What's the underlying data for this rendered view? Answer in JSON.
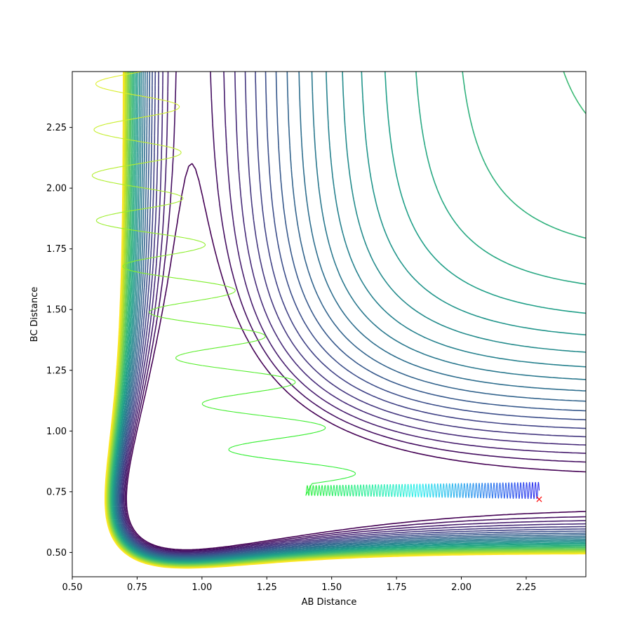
{
  "chart_data": {
    "type": "contour",
    "title": "",
    "xlabel": "AB Distance",
    "ylabel": "BC Distance",
    "xlim": [
      0.5,
      2.48
    ],
    "ylim": [
      0.4,
      2.48
    ],
    "xticks": [
      "0.50",
      "0.75",
      "1.00",
      "1.25",
      "1.50",
      "1.75",
      "2.00",
      "2.25"
    ],
    "yticks": [
      "0.50",
      "0.75",
      "1.00",
      "1.25",
      "1.50",
      "1.75",
      "2.00",
      "2.25"
    ],
    "xtick_values": [
      0.5,
      0.75,
      1.0,
      1.25,
      1.5,
      1.75,
      2.0,
      2.25
    ],
    "ytick_values": [
      0.5,
      0.75,
      1.0,
      1.25,
      1.5,
      1.75,
      2.0,
      2.25
    ],
    "grid": false,
    "colormap": "viridis",
    "contour_colors": [
      "#440154",
      "#482878",
      "#3e4989",
      "#31688e",
      "#26828e",
      "#1f9e89",
      "#35b779",
      "#6ece58",
      "#b5de2b",
      "#fde725"
    ],
    "trajectory": {
      "start": [
        2.3,
        0.72
      ],
      "end_marker_color": "#ff0000",
      "passes_through": [
        [
          1.8,
          0.77
        ],
        [
          1.5,
          0.77
        ],
        [
          1.4,
          0.78
        ],
        [
          1.25,
          1.15
        ],
        [
          1.0,
          1.6
        ],
        [
          0.8,
          2.1
        ],
        [
          0.6,
          2.48
        ]
      ]
    }
  }
}
